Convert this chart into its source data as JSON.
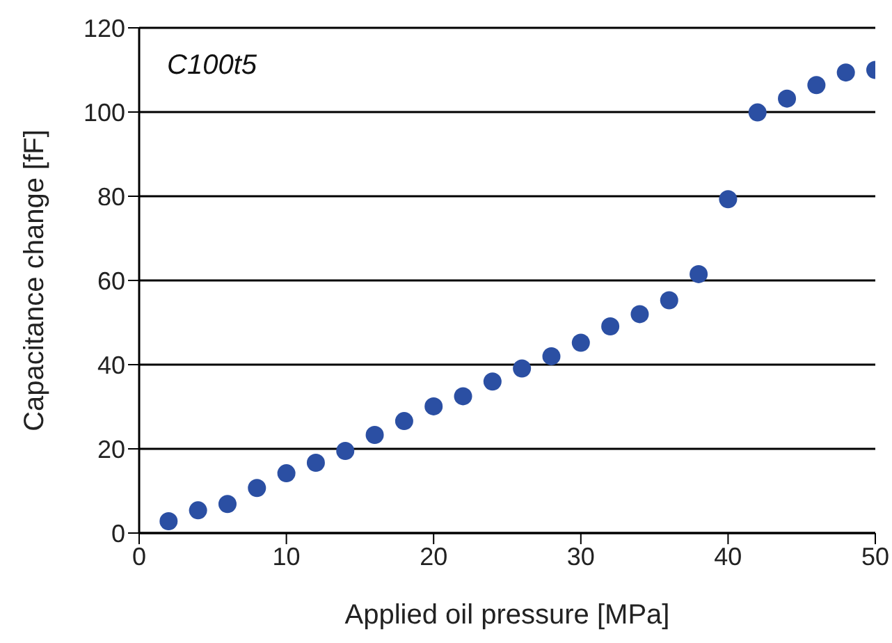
{
  "chart_data": {
    "type": "scatter",
    "xlabel": "Applied oil pressure [MPa]",
    "ylabel": "Capacitance change [fF]",
    "annotations": [
      "C100t5"
    ],
    "x": [
      2,
      4,
      6,
      8,
      10,
      12,
      14,
      16,
      18,
      20,
      22,
      24,
      26,
      28,
      30,
      32,
      34,
      36,
      38,
      40,
      42,
      44,
      46,
      48,
      50
    ],
    "series": [
      {
        "color": "#2b4fa3",
        "values": [
          2.8,
          5.4,
          6.9,
          10.7,
          14.2,
          16.7,
          19.5,
          23.3,
          26.6,
          30.1,
          32.5,
          36.0,
          39.1,
          42.0,
          45.2,
          49.1,
          52.0,
          55.3,
          61.5,
          79.3,
          99.9,
          103.2,
          106.4,
          109.4,
          110.0
        ]
      }
    ],
    "xlim": [
      0,
      50
    ],
    "xticks": [
      0,
      10,
      20,
      30,
      40,
      50
    ],
    "ylim": [
      0,
      120
    ],
    "yticks": [
      0,
      20,
      40,
      60,
      80,
      100,
      120
    ],
    "grid": "y",
    "marker": "circle"
  }
}
